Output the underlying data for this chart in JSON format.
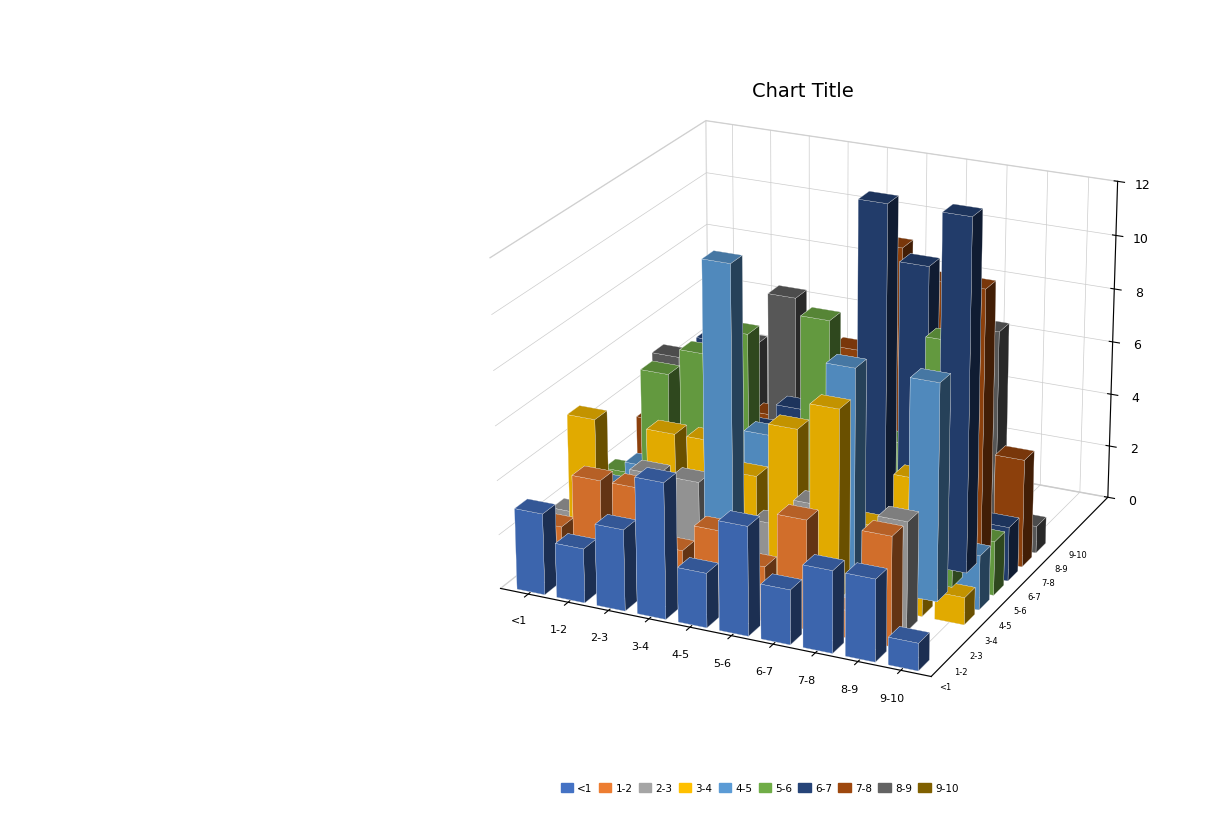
{
  "title": "Chart Title",
  "x_categories": [
    "<1",
    "1-2",
    "2-3",
    "3-4",
    "4-5",
    "5-6",
    "6-7",
    "7-8",
    "8-9",
    "9-10"
  ],
  "series_labels": [
    "<1",
    "1-2",
    "2-3",
    "3-4",
    "4-5",
    "5-6",
    "6-7",
    "7-8",
    "8-9",
    "9-10"
  ],
  "data": [
    [
      3,
      2,
      2,
      5,
      2,
      2,
      1,
      3,
      5,
      0
    ],
    [
      2,
      4,
      3,
      1,
      3,
      6,
      3,
      3,
      2,
      1
    ],
    [
      3,
      4,
      4,
      5,
      4,
      7,
      7,
      5,
      6,
      1
    ],
    [
      5,
      2,
      4,
      5,
      11,
      8,
      4,
      4,
      8,
      2
    ],
    [
      2,
      3,
      2,
      4,
      5,
      4,
      5,
      4,
      6,
      1
    ],
    [
      4,
      2,
      3,
      6,
      5,
      9,
      6,
      7,
      5,
      2
    ],
    [
      2,
      4,
      4,
      7,
      8,
      6,
      13,
      11,
      8,
      2
    ],
    [
      3,
      1,
      1,
      3,
      4,
      5,
      11,
      10,
      5,
      1
    ],
    [
      3,
      4,
      4,
      5,
      8,
      9,
      13,
      10,
      8,
      1
    ],
    [
      1,
      0,
      0,
      1,
      2,
      2,
      2,
      4,
      1,
      0
    ]
  ],
  "colors": [
    "#4472C4",
    "#ED7D31",
    "#A5A5A5",
    "#FFC000",
    "#5B9BD5",
    "#70AD47",
    "#264478",
    "#9E480E",
    "#636363",
    "#806000"
  ],
  "zlim": [
    0,
    12
  ],
  "zticks": [
    0,
    2,
    4,
    6,
    8,
    10,
    12
  ],
  "background_color": "#FFFFFF",
  "title_fontsize": 14,
  "elev": 22,
  "azim": -65
}
